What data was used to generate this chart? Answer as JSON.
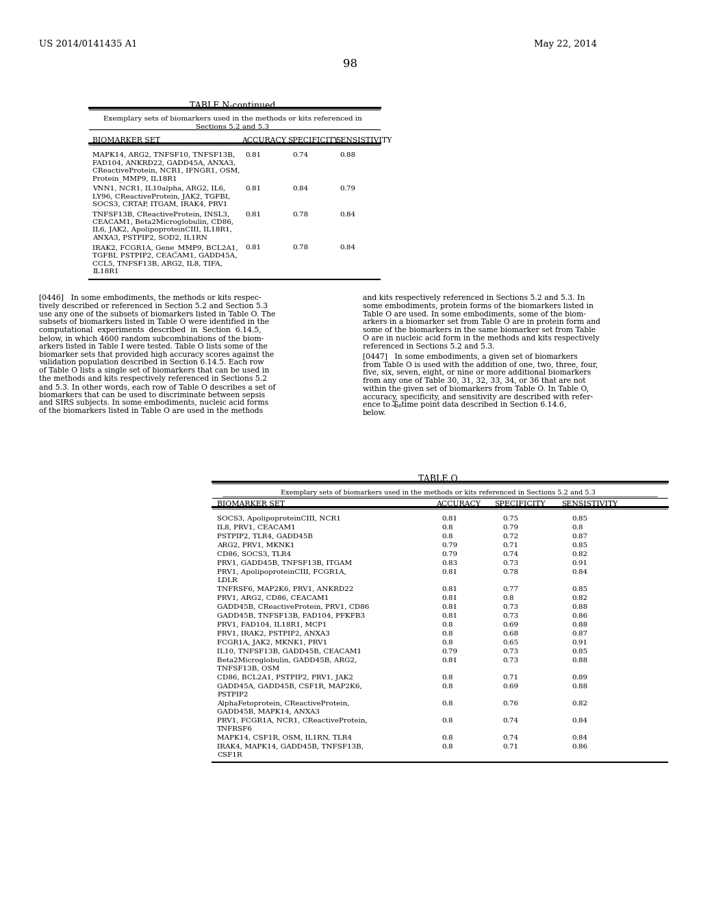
{
  "page_number": "98",
  "header_left": "US 2014/0141435 A1",
  "header_right": "May 22, 2014",
  "table_n_title": "TABLE N-continued",
  "table_n_subtitle_line1": "Exemplary sets of biomarkers used in the methods or kits referenced in",
  "table_n_subtitle_line2": "Sections 5.2 and 5.3",
  "table_n_col_headers": [
    "BIOMARKER SET",
    "ACCURACY",
    "SPECIFICITY",
    "SENSISTIVITY"
  ],
  "table_n_rows": [
    [
      "MAPK14, ARG2, TNFSF10, TNFSF13B,\nFAD104, ANKRD22, GADD45A, ANXA3,\nCReactiveProtein, NCR1, IFNGR1, OSM,\nProtein_MMP9, IL18R1",
      "0.81",
      "0.74",
      "0.88"
    ],
    [
      "VNN1, NCR1, IL10alpha, ARG2, IL6,\nLY96, CReactiveProtein, JAK2, TGFBI,\nSOCS3, CRTAP, ITGAM, IRAK4, PRV1",
      "0.81",
      "0.84",
      "0.79"
    ],
    [
      "TNFSF13B, CReactiveProtein, INSL3,\nCEACAM1, Beta2Microglobulin, CD86,\nIL6, JAK2, ApolipoproteinCIII, IL18R1,\nANXA3, PSTPIP2, SOD2, IL1RN",
      "0.81",
      "0.78",
      "0.84"
    ],
    [
      "IRAK2, FCGR1A, Gene_MMP9, BCL2A1,\nTGFBI, PSTPIP2, CEACAM1, GADD45A,\nCCL5, TNFSF13B, ARG2, IL8, TIFA,\nIL18R1",
      "0.81",
      "0.78",
      "0.84"
    ]
  ],
  "para_0446_left": [
    "[0446]   In some embodiments, the methods or kits respec-",
    "tively described or referenced in Section 5.2 and Section 5.3",
    "use any one of the subsets of biomarkers listed in Table O. The",
    "subsets of biomarkers listed in Table O were identified in the",
    "computational  experiments  described  in  Section  6.14.5,",
    "below, in which 4600 random subcombinations of the biom-",
    "arkers listed in Table I were tested. Table O lists some of the",
    "biomarker sets that provided high accuracy scores against the",
    "validation population described in Section 6.14.5. Each row",
    "of Table O lists a single set of biomarkers that can be used in",
    "the methods and kits respectively referenced in Sections 5.2",
    "and 5.3. In other words, each row of Table O describes a set of",
    "biomarkers that can be used to discriminate between sepsis",
    "and SIRS subjects. In some embodiments, nucleic acid forms",
    "of the biomarkers listed in Table O are used in the methods"
  ],
  "para_0446_right": [
    "and kits respectively referenced in Sections 5.2 and 5.3. In",
    "some embodiments, protein forms of the biomarkers listed in",
    "Table O are used. In some embodiments, some of the biom-",
    "arkers in a biomarker set from Table O are in protein form and",
    "some of the biomarkers in the same biomarker set from Table",
    "O are in nucleic acid form in the methods and kits respectively",
    "referenced in Sections 5.2 and 5.3."
  ],
  "para_0447_right": [
    "[0447]   In some embodiments, a given set of biomarkers",
    "from Table O is used with the addition of one, two, three, four,",
    "five, six, seven, eight, or nine or more additional biomarkers",
    "from any one of Table 30, 31, 32, 33, 34, or 36 that are not",
    "within the given set of biomarkers from Table O. In Table O,",
    "accuracy, specificity, and sensitivity are described with refer-",
    "ence to T",
    " time point data described in Section 6.14.6,",
    "below."
  ],
  "table_o_title": "TABLE O",
  "table_o_subtitle": "Exemplary sets of biomarkers used in the methods or kits referenced in Sections 5.2 and 5.3",
  "table_o_col_headers": [
    "BIOMARKER SET",
    "ACCURACY",
    "SPECIFICITY",
    "SENSISTIVITY"
  ],
  "table_o_rows": [
    [
      "SOCS3, ApolipoproteinCIII, NCR1",
      "0.81",
      "0.75",
      "0.85"
    ],
    [
      "IL8, PRV1, CEACAM1",
      "0.8",
      "0.79",
      "0.8"
    ],
    [
      "PSTPIP2, TLR4, GADD45B",
      "0.8",
      "0.72",
      "0.87"
    ],
    [
      "ARG2, PRV1, MKNK1",
      "0.79",
      "0.71",
      "0.85"
    ],
    [
      "CD86, SOCS3, TLR4",
      "0.79",
      "0.74",
      "0.82"
    ],
    [
      "PRV1, GADD45B, TNFSF13B, ITGAM",
      "0.83",
      "0.73",
      "0.91"
    ],
    [
      "PRV1, ApolipoproteinCIII, FCGR1A,\nLDLR",
      "0.81",
      "0.78",
      "0.84"
    ],
    [
      "TNFRSF6, MAP2K6, PRV1, ANKRD22",
      "0.81",
      "0.77",
      "0.85"
    ],
    [
      "PRV1, ARG2, CD86, CEACAM1",
      "0.81",
      "0.8",
      "0.82"
    ],
    [
      "GADD45B, CReactiveProtein, PRV1, CD86",
      "0.81",
      "0.73",
      "0.88"
    ],
    [
      "GADD45B, TNFSF13B, FAD104, PFKFB3",
      "0.81",
      "0.73",
      "0.86"
    ],
    [
      "PRV1, FAD104, IL18R1, MCP1",
      "0.8",
      "0.69",
      "0.88"
    ],
    [
      "PRV1, IRAK2, PSTPIP2, ANXA3",
      "0.8",
      "0.68",
      "0.87"
    ],
    [
      "FCGR1A, JAK2, MKNK1, PRV1",
      "0.8",
      "0.65",
      "0.91"
    ],
    [
      "IL10, TNFSF13B, GADD45B, CEACAM1",
      "0.79",
      "0.73",
      "0.85"
    ],
    [
      "Beta2Microglobulin, GADD45B, ARG2,\nTNFSF13B, OSM",
      "0.81",
      "0.73",
      "0.88"
    ],
    [
      "CD86, BCL2A1, PSTPIP2, PRV1, JAK2",
      "0.8",
      "0.71",
      "0.89"
    ],
    [
      "GADD45A, GADD45B, CSF1R, MAP2K6,\nPSTPIP2",
      "0.8",
      "0.69",
      "0.88"
    ],
    [
      "AlphaFetoprotein, CReactiveProtein,\nGADD45B, MAPK14, ANXA3",
      "0.8",
      "0.76",
      "0.82"
    ],
    [
      "PRV1, FCGR1A, NCR1, CReactiveProtein,\nTNFRSF6",
      "0.8",
      "0.74",
      "0.84"
    ],
    [
      "MAPK14, CSF1R, OSM, IL1RN, TLR4",
      "0.8",
      "0.74",
      "0.84"
    ],
    [
      "IRAK4, MAPK14, GADD45B, TNFSF13B,\nCSF1R",
      "0.8",
      "0.71",
      "0.86"
    ]
  ]
}
